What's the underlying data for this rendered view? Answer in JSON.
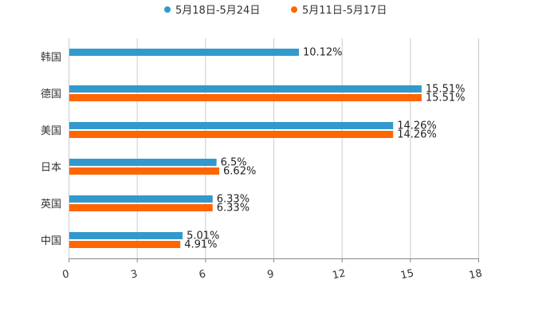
{
  "chart_data": {
    "type": "bar",
    "orientation": "horizontal",
    "categories": [
      "韩国",
      "德国",
      "美国",
      "日本",
      "英国",
      "中国"
    ],
    "series": [
      {
        "name": "5月18日-5月24日",
        "color": "#3399cc",
        "values": [
          10.12,
          15.51,
          14.26,
          6.5,
          6.33,
          5.01
        ],
        "labels": [
          "10.12%",
          "15.51%",
          "14.26%",
          "6.5%",
          "6.33%",
          "5.01%"
        ]
      },
      {
        "name": "5月11日-5月17日",
        "color": "#ff6600",
        "values": [
          null,
          15.51,
          14.26,
          6.62,
          6.33,
          4.91
        ],
        "labels": [
          null,
          "15.51%",
          "14.26%",
          "6.62%",
          "6.33%",
          "4.91%"
        ]
      }
    ],
    "xlim": [
      0,
      18
    ],
    "xticks": [
      0,
      3,
      6,
      9,
      12,
      15,
      18
    ],
    "xtick_labels": [
      "0",
      "3",
      "6",
      "9",
      "12",
      "15",
      "18"
    ],
    "grid": true,
    "legend_position": "top-center",
    "title": "",
    "xlabel": "",
    "ylabel": ""
  }
}
